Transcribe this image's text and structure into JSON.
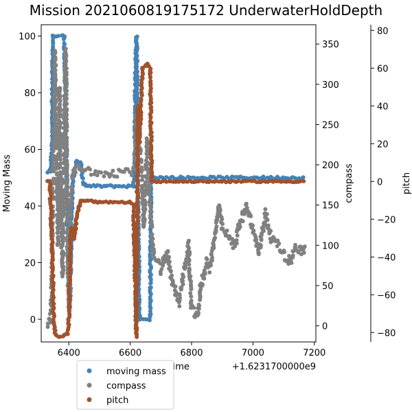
{
  "chart_data": {
    "type": "scatter",
    "title": "Mission 2021060819175172 UnderwaterHoldDepth",
    "xlabel": "Time",
    "x_offset_text": "+1.6231700000e9",
    "ylabel_left": "Moving Mass",
    "ylabel_right1": "compass",
    "ylabel_right2": "pitch",
    "xlim": [
      6310,
      7205
    ],
    "ylim_left": [
      -8,
      104
    ],
    "ylim_right1": [
      -20,
      374
    ],
    "ylim_right2": [
      -85,
      83
    ],
    "x_ticks": [
      6400,
      6600,
      6800,
      7000,
      7200
    ],
    "y_ticks_left": [
      0,
      20,
      40,
      60,
      80,
      100
    ],
    "y_ticks_right1": [
      0,
      50,
      100,
      150,
      200,
      250,
      300,
      350
    ],
    "y_ticks_right2": [
      -80,
      -60,
      -40,
      -20,
      0,
      20,
      40,
      60,
      80
    ],
    "grid": false,
    "legend_position": "below-left",
    "series": [
      {
        "name": "moving mass",
        "color": "#4682b4",
        "axis": "left",
        "segments": [
          [
            6330,
            52
          ],
          [
            6340,
            52
          ],
          [
            6345,
            60
          ],
          [
            6348,
            100
          ],
          [
            6360,
            100
          ],
          [
            6375,
            100
          ],
          [
            6385,
            100
          ],
          [
            6392,
            60
          ],
          [
            6398,
            20
          ],
          [
            6403,
            4
          ],
          [
            6408,
            30
          ],
          [
            6412,
            48
          ],
          [
            6425,
            56
          ],
          [
            6440,
            55
          ],
          [
            6445,
            48
          ],
          [
            6460,
            47
          ],
          [
            6500,
            47
          ],
          [
            6540,
            47
          ],
          [
            6580,
            47
          ],
          [
            6600,
            47
          ],
          [
            6610,
            47
          ],
          [
            6615,
            60
          ],
          [
            6618,
            90
          ],
          [
            6621,
            100
          ],
          [
            6624,
            60
          ],
          [
            6628,
            20
          ],
          [
            6630,
            0
          ],
          [
            6650,
            0
          ],
          [
            6665,
            0
          ],
          [
            6668,
            50
          ],
          [
            6700,
            50
          ],
          [
            6800,
            50
          ],
          [
            6900,
            50
          ],
          [
            7000,
            50
          ],
          [
            7100,
            50
          ],
          [
            7170,
            50
          ]
        ]
      },
      {
        "name": "compass",
        "color": "#808080",
        "axis": "right1",
        "segments": [
          [
            6330,
            0
          ],
          [
            6340,
            10
          ],
          [
            6345,
            60
          ],
          [
            6348,
            180
          ],
          [
            6352,
            250
          ],
          [
            6355,
            340
          ],
          [
            6360,
            200
          ],
          [
            6365,
            100
          ],
          [
            6370,
            300
          ],
          [
            6375,
            150
          ],
          [
            6380,
            60
          ],
          [
            6385,
            250
          ],
          [
            6390,
            340
          ],
          [
            6395,
            120
          ],
          [
            6400,
            20
          ],
          [
            6405,
            140
          ],
          [
            6410,
            180
          ],
          [
            6415,
            190
          ],
          [
            6425,
            195
          ],
          [
            6450,
            193
          ],
          [
            6500,
            192
          ],
          [
            6550,
            191
          ],
          [
            6600,
            192
          ],
          [
            6615,
            195
          ],
          [
            6620,
            260
          ],
          [
            6625,
            240
          ],
          [
            6635,
            210
          ],
          [
            6645,
            120
          ],
          [
            6655,
            230
          ],
          [
            6665,
            150
          ],
          [
            6675,
            90
          ],
          [
            6690,
            80
          ],
          [
            6700,
            70
          ],
          [
            6720,
            90
          ],
          [
            6740,
            50
          ],
          [
            6760,
            30
          ],
          [
            6780,
            80
          ],
          [
            6790,
            100
          ],
          [
            6800,
            20
          ],
          [
            6820,
            10
          ],
          [
            6830,
            50
          ],
          [
            6850,
            80
          ],
          [
            6860,
            70
          ],
          [
            6870,
            100
          ],
          [
            6890,
            150
          ],
          [
            6900,
            120
          ],
          [
            6920,
            110
          ],
          [
            6940,
            100
          ],
          [
            6960,
            130
          ],
          [
            6980,
            150
          ],
          [
            7000,
            120
          ],
          [
            7020,
            90
          ],
          [
            7040,
            140
          ],
          [
            7060,
            110
          ],
          [
            7080,
            100
          ],
          [
            7100,
            90
          ],
          [
            7120,
            80
          ],
          [
            7140,
            100
          ],
          [
            7160,
            90
          ],
          [
            7170,
            100
          ]
        ]
      },
      {
        "name": "pitch",
        "color": "#a0522d",
        "axis": "right2",
        "segments": [
          [
            6330,
            0
          ],
          [
            6338,
            0
          ],
          [
            6345,
            -30
          ],
          [
            6350,
            -70
          ],
          [
            6355,
            -80
          ],
          [
            6365,
            -82
          ],
          [
            6380,
            -82
          ],
          [
            6395,
            -81
          ],
          [
            6400,
            -75
          ],
          [
            6405,
            -30
          ],
          [
            6410,
            -25
          ],
          [
            6418,
            -30
          ],
          [
            6425,
            -20
          ],
          [
            6430,
            -15
          ],
          [
            6440,
            -10
          ],
          [
            6460,
            -10
          ],
          [
            6500,
            -11
          ],
          [
            6550,
            -11
          ],
          [
            6600,
            -11
          ],
          [
            6610,
            -12
          ],
          [
            6615,
            -40
          ],
          [
            6620,
            -82
          ],
          [
            6625,
            40
          ],
          [
            6630,
            20
          ],
          [
            6640,
            60
          ],
          [
            6655,
            62
          ],
          [
            6665,
            60
          ],
          [
            6670,
            0
          ],
          [
            6700,
            0
          ],
          [
            6800,
            0
          ],
          [
            6900,
            0
          ],
          [
            7000,
            0
          ],
          [
            7100,
            0
          ],
          [
            7170,
            0
          ]
        ]
      }
    ]
  }
}
